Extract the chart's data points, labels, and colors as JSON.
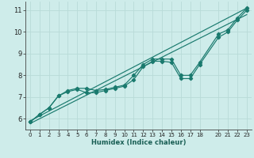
{
  "xlabel": "Humidex (Indice chaleur)",
  "bg_color": "#ceecea",
  "grid_color": "#b8dbd8",
  "line_color": "#1a7a6e",
  "xlim": [
    -0.5,
    23.5
  ],
  "ylim": [
    5.5,
    11.4
  ],
  "xticks": [
    0,
    1,
    2,
    3,
    4,
    5,
    6,
    7,
    8,
    9,
    10,
    11,
    12,
    13,
    14,
    15,
    16,
    17,
    18,
    20,
    21,
    22,
    23
  ],
  "yticks": [
    6,
    7,
    8,
    9,
    10,
    11
  ],
  "curve1_x": [
    0,
    1,
    2,
    3,
    4,
    5,
    6,
    7,
    8,
    9,
    10,
    11,
    12,
    13,
    14,
    15,
    16,
    17,
    18,
    20,
    21,
    22,
    23
  ],
  "curve1_y": [
    5.85,
    6.2,
    6.5,
    7.05,
    7.3,
    7.4,
    7.4,
    7.3,
    7.35,
    7.45,
    7.55,
    8.0,
    8.5,
    8.75,
    8.75,
    8.75,
    8.0,
    8.0,
    8.6,
    9.9,
    10.1,
    10.65,
    11.1
  ],
  "curve2_x": [
    0,
    1,
    2,
    3,
    4,
    5,
    6,
    7,
    8,
    9,
    10,
    11,
    12,
    13,
    14,
    15,
    16,
    17,
    18,
    20,
    21,
    22,
    23
  ],
  "curve2_y": [
    5.85,
    6.2,
    6.5,
    7.05,
    7.25,
    7.35,
    7.2,
    7.2,
    7.3,
    7.4,
    7.5,
    7.8,
    8.4,
    8.65,
    8.65,
    8.6,
    7.85,
    7.85,
    8.5,
    9.75,
    10.0,
    10.55,
    11.0
  ],
  "line1_x": [
    0,
    23
  ],
  "line1_y": [
    5.9,
    11.1
  ],
  "line2_x": [
    0,
    23
  ],
  "line2_y": [
    5.78,
    10.8
  ]
}
